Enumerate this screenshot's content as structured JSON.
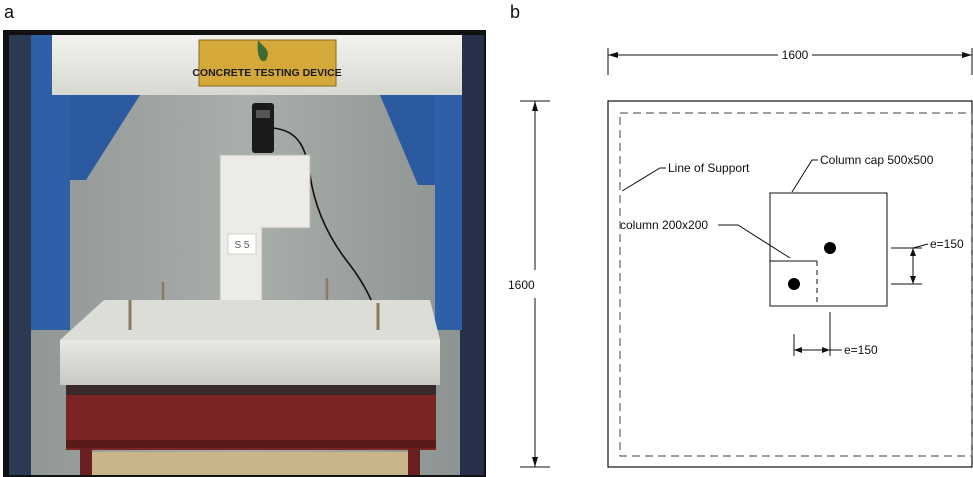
{
  "panels": {
    "a": {
      "label": "a",
      "photo": {
        "sign_text": "CONCRETE TESTING DEVICE",
        "specimen_tag": "S 5"
      }
    },
    "b": {
      "label": "b",
      "diagram": {
        "top_dimension": "1600",
        "left_dimension": "1600",
        "line_of_support": "Line of Support",
        "column_cap": "Column cap 500x500",
        "column": "column 200x200",
        "eccentricity_vertical": "e=150",
        "eccentricity_horizontal": "e=150"
      }
    }
  }
}
